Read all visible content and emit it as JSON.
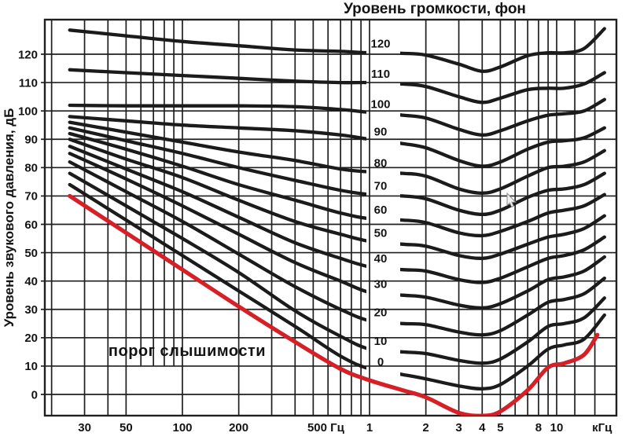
{
  "colors": {
    "background": "#ffffff",
    "curve": "#1b1b1b",
    "grid": "#1f1f1f",
    "border": "#1f1f1f",
    "text": "#141414",
    "threshold": "#d62027"
  },
  "chart_data": {
    "type": "line",
    "title": "Уровень громкости, фон",
    "xlabel": "",
    "ylabel": "Уровень звукового давления, дБ",
    "x_scale": "log",
    "x_range_hz": [
      18.4,
      20900
    ],
    "y_range_db": [
      -7.5,
      132
    ],
    "grid": true,
    "grid_db_lines": [
      0,
      10,
      20,
      30,
      40,
      50,
      60,
      70,
      80,
      90,
      100,
      110,
      120
    ],
    "grid_frequencies_hz": [
      20,
      30,
      40,
      50,
      60,
      70,
      80,
      90,
      100,
      200,
      300,
      400,
      500,
      600,
      700,
      800,
      900,
      1000,
      2000,
      3000,
      4000,
      5000,
      6000,
      7000,
      8000,
      9000,
      10000,
      12500,
      16000
    ],
    "short_grid_frequencies_hz": [
      60,
      70,
      80,
      90
    ],
    "y_ticks": [
      {
        "label": "120",
        "db": 120
      },
      {
        "label": "110",
        "db": 110
      },
      {
        "label": "100",
        "db": 100
      },
      {
        "label": "90",
        "db": 90
      },
      {
        "label": "80",
        "db": 80
      },
      {
        "label": "70",
        "db": 70
      },
      {
        "label": "60",
        "db": 60
      },
      {
        "label": "50",
        "db": 50
      },
      {
        "label": "40",
        "db": 40
      },
      {
        "label": "30",
        "db": 30
      },
      {
        "label": "20",
        "db": 20
      },
      {
        "label": "10",
        "db": 10
      },
      {
        "label": "0",
        "db": 0
      }
    ],
    "x_ticks": [
      {
        "label": "30",
        "hz": 30
      },
      {
        "label": "50",
        "hz": 50
      },
      {
        "label": "100",
        "hz": 100
      },
      {
        "label": "200",
        "hz": 200
      },
      {
        "label": "500 Гц",
        "hz": 500
      },
      {
        "label": "1",
        "hz": 1000
      },
      {
        "label": "2",
        "hz": 2000
      },
      {
        "label": "3",
        "hz": 3000
      },
      {
        "label": "4",
        "hz": 4000
      },
      {
        "label": "5",
        "hz": 5000
      },
      {
        "label": "8",
        "hz": 8000
      },
      {
        "label": "10",
        "hz": 10000
      },
      {
        "label": "кГц",
        "hz": 17500
      }
    ],
    "frequencies_hz": [
      25,
      50,
      100,
      200,
      400,
      700,
      1000,
      1500,
      2000,
      3000,
      4000,
      5000,
      7000,
      9000,
      11000,
      14000,
      18000
    ],
    "series": [
      {
        "phon": 0,
        "label": "0",
        "values": [
          74,
          61.5,
          49,
          36.5,
          24,
          13.5,
          9,
          7,
          5.5,
          3,
          2,
          3.5,
          10,
          16,
          17.5,
          19.5,
          28
        ]
      },
      {
        "phon": 10,
        "label": "10",
        "values": [
          78,
          66.5,
          55,
          43,
          29.5,
          20.5,
          16,
          15,
          14.4,
          12,
          11,
          12.5,
          18.5,
          24,
          25,
          27,
          34
        ]
      },
      {
        "phon": 20,
        "label": "20",
        "values": [
          82,
          71.5,
          61,
          49.5,
          38,
          30,
          26,
          25,
          24.6,
          22,
          21,
          22.5,
          28,
          32.5,
          33.5,
          35.5,
          41
        ]
      },
      {
        "phon": 30,
        "label": "30",
        "values": [
          85,
          76,
          66.5,
          56.5,
          46.5,
          40,
          36,
          35,
          34.3,
          31.5,
          30.5,
          32,
          36.5,
          40.5,
          41.5,
          43.5,
          48.5
        ]
      },
      {
        "phon": 40,
        "label": "40",
        "values": [
          87.5,
          79.5,
          71.5,
          62.5,
          53.5,
          48,
          45,
          44,
          43.5,
          40.5,
          39.5,
          41,
          45,
          48,
          49,
          51,
          55.5
        ]
      },
      {
        "phon": 50,
        "label": "50",
        "values": [
          90,
          83,
          76.5,
          68.5,
          61,
          56.5,
          54,
          53,
          52.3,
          49,
          48,
          49.5,
          53,
          55.5,
          56.5,
          58.5,
          63
        ]
      },
      {
        "phon": 60,
        "label": "60",
        "values": [
          92,
          86.5,
          80.5,
          74,
          68.5,
          64,
          62,
          61.5,
          60.6,
          57,
          56,
          57.5,
          61,
          64,
          65,
          66.5,
          70.5
        ]
      },
      {
        "phon": 70,
        "label": "70",
        "values": [
          94,
          89.5,
          85,
          80,
          75.5,
          72,
          70.5,
          70,
          69,
          65,
          63.5,
          65,
          69.5,
          72,
          72.5,
          74,
          78
        ]
      },
      {
        "phon": 80,
        "label": "80",
        "values": [
          96,
          92.5,
          89,
          85.5,
          82.5,
          79.5,
          78.5,
          78,
          77,
          72.5,
          71,
          72.5,
          77,
          80,
          80.5,
          82,
          86
        ]
      },
      {
        "phon": 90,
        "label": "90",
        "values": [
          98,
          96.5,
          95,
          94,
          93,
          91.5,
          90,
          88.5,
          87,
          82.5,
          80.5,
          82,
          86.5,
          89,
          89.5,
          90.5,
          94
        ]
      },
      {
        "phon": 100,
        "label": "100",
        "values": [
          102,
          101.8,
          101.8,
          101.8,
          101.5,
          100.5,
          99.5,
          98.5,
          97.5,
          93.5,
          91.5,
          93,
          96.5,
          98.5,
          99,
          100,
          104
        ]
      },
      {
        "phon": 110,
        "label": "110",
        "values": [
          114.5,
          113.5,
          112.5,
          111.5,
          110.5,
          110,
          110,
          109.5,
          108.6,
          105,
          103,
          104.5,
          107.5,
          108,
          108,
          109.5,
          113.5
        ]
      },
      {
        "phon": 120,
        "label": "120",
        "values": [
          128.5,
          126.5,
          124.5,
          123,
          121.5,
          121,
          120.5,
          120.3,
          119.7,
          116.5,
          114,
          115.5,
          119.5,
          120.5,
          120.5,
          122,
          129
        ]
      }
    ],
    "threshold": {
      "label": "порог слышимости",
      "color": "#d62027",
      "frequencies_hz": [
        25,
        50,
        100,
        200,
        400,
        700,
        1000,
        1500,
        2000,
        3000,
        4000,
        5000,
        7000,
        9000,
        11000,
        14000,
        16500
      ],
      "values": [
        70,
        57,
        44,
        31,
        18.5,
        9,
        5,
        1.5,
        -1,
        -6.5,
        -7.5,
        -6,
        1.5,
        9.5,
        11,
        14,
        21
      ]
    },
    "legend_position": "none"
  }
}
